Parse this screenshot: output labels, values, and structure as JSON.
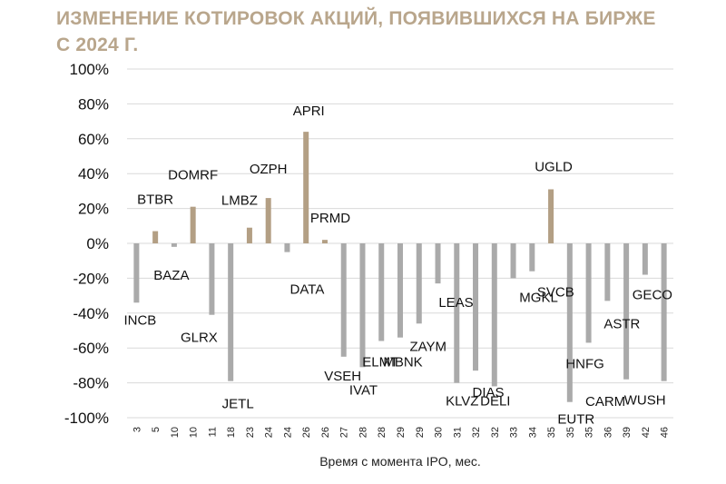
{
  "header": {
    "title_line1": "ИЗМЕНЕНИЕ КОТИРОВОК АКЦИЙ, ПОЯВИВШИХСЯ НА БИРЖЕ",
    "title_line2": "С 2024 Г."
  },
  "colors": {
    "positive": "#b39f84",
    "negative": "#aaaaaa",
    "title": "#b9a68c",
    "grid": "#d9d9d9"
  },
  "chart_data": {
    "type": "bar",
    "title": "ИЗМЕНЕНИЕ КОТИРОВОК АКЦИЙ, ПОЯВИВШИХСЯ НА БИРЖЕ С 2024 Г.",
    "xlabel": "Время с момента IPO, мес.",
    "ylabel": "",
    "ylim": [
      -100,
      100
    ],
    "yticks": [
      "100%",
      "80%",
      "60%",
      "40%",
      "20%",
      "0%",
      "-20%",
      "-40%",
      "-60%",
      "-80%",
      "-100%"
    ],
    "grid": true,
    "categories": [
      "3",
      "5",
      "10",
      "10",
      "11",
      "18",
      "23",
      "24",
      "24",
      "26",
      "26",
      "27",
      "28",
      "28",
      "29",
      "29",
      "30",
      "31",
      "32",
      "32",
      "33",
      "34",
      "35",
      "35",
      "35",
      "36",
      "39",
      "42",
      "46"
    ],
    "labels": [
      "INCB",
      "BTBR",
      "BAZA",
      "DOMRF",
      "GLRX",
      "JETL",
      "LMBZ",
      "OZPH",
      "DATA",
      "APRI",
      "PRMD",
      "VSEH",
      "IVAT",
      "ELMT",
      "MBNK",
      "ZAYM",
      "LEAS",
      "KLVZ",
      "DIAS",
      "DELI",
      "MGKL",
      "SVCB",
      "UGLD",
      "EUTR",
      "HNFG",
      "ASTR",
      "CARM",
      "GECO",
      "WUSH"
    ],
    "values": [
      -34,
      7,
      -2,
      21,
      -41,
      -79,
      9,
      26,
      -5,
      64,
      2,
      -65,
      -71,
      -56,
      -54,
      -46,
      -23,
      -80,
      -73,
      -82,
      -20,
      -16,
      31,
      -91,
      -57,
      -33,
      -78,
      -18,
      -79
    ]
  }
}
